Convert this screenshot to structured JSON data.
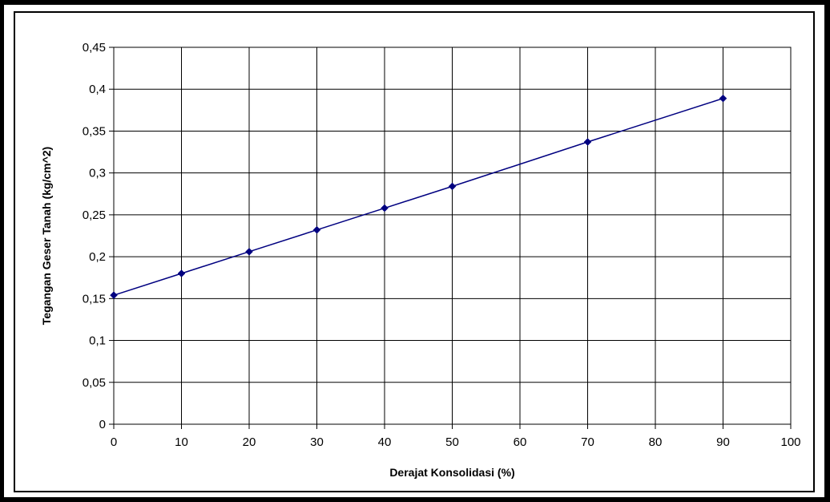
{
  "chart_data": {
    "type": "line",
    "xlabel": "Derajat Konsolidasi (%)",
    "ylabel": "Tegangan Geser Tanah (kg/cm^2)",
    "xlim": [
      0,
      100
    ],
    "ylim": [
      0,
      0.45
    ],
    "x_ticks": [
      0,
      10,
      20,
      30,
      40,
      50,
      60,
      70,
      80,
      90,
      100
    ],
    "x_tick_labels": [
      "0",
      "10",
      "20",
      "30",
      "40",
      "50",
      "60",
      "70",
      "80",
      "90",
      "100"
    ],
    "y_ticks": [
      0,
      0.05,
      0.1,
      0.15,
      0.2,
      0.25,
      0.3,
      0.35,
      0.4,
      0.45
    ],
    "y_tick_labels": [
      "0",
      "0,05",
      "0,1",
      "0,15",
      "0,2",
      "0,25",
      "0,3",
      "0,35",
      "0,4",
      "0,45"
    ],
    "grid": true,
    "legend": false,
    "series": [
      {
        "color": "#000080",
        "x": [
          0,
          10,
          20,
          30,
          40,
          50,
          70,
          90
        ],
        "y": [
          0.154,
          0.18,
          0.206,
          0.232,
          0.258,
          0.284,
          0.337,
          0.389
        ]
      }
    ]
  }
}
